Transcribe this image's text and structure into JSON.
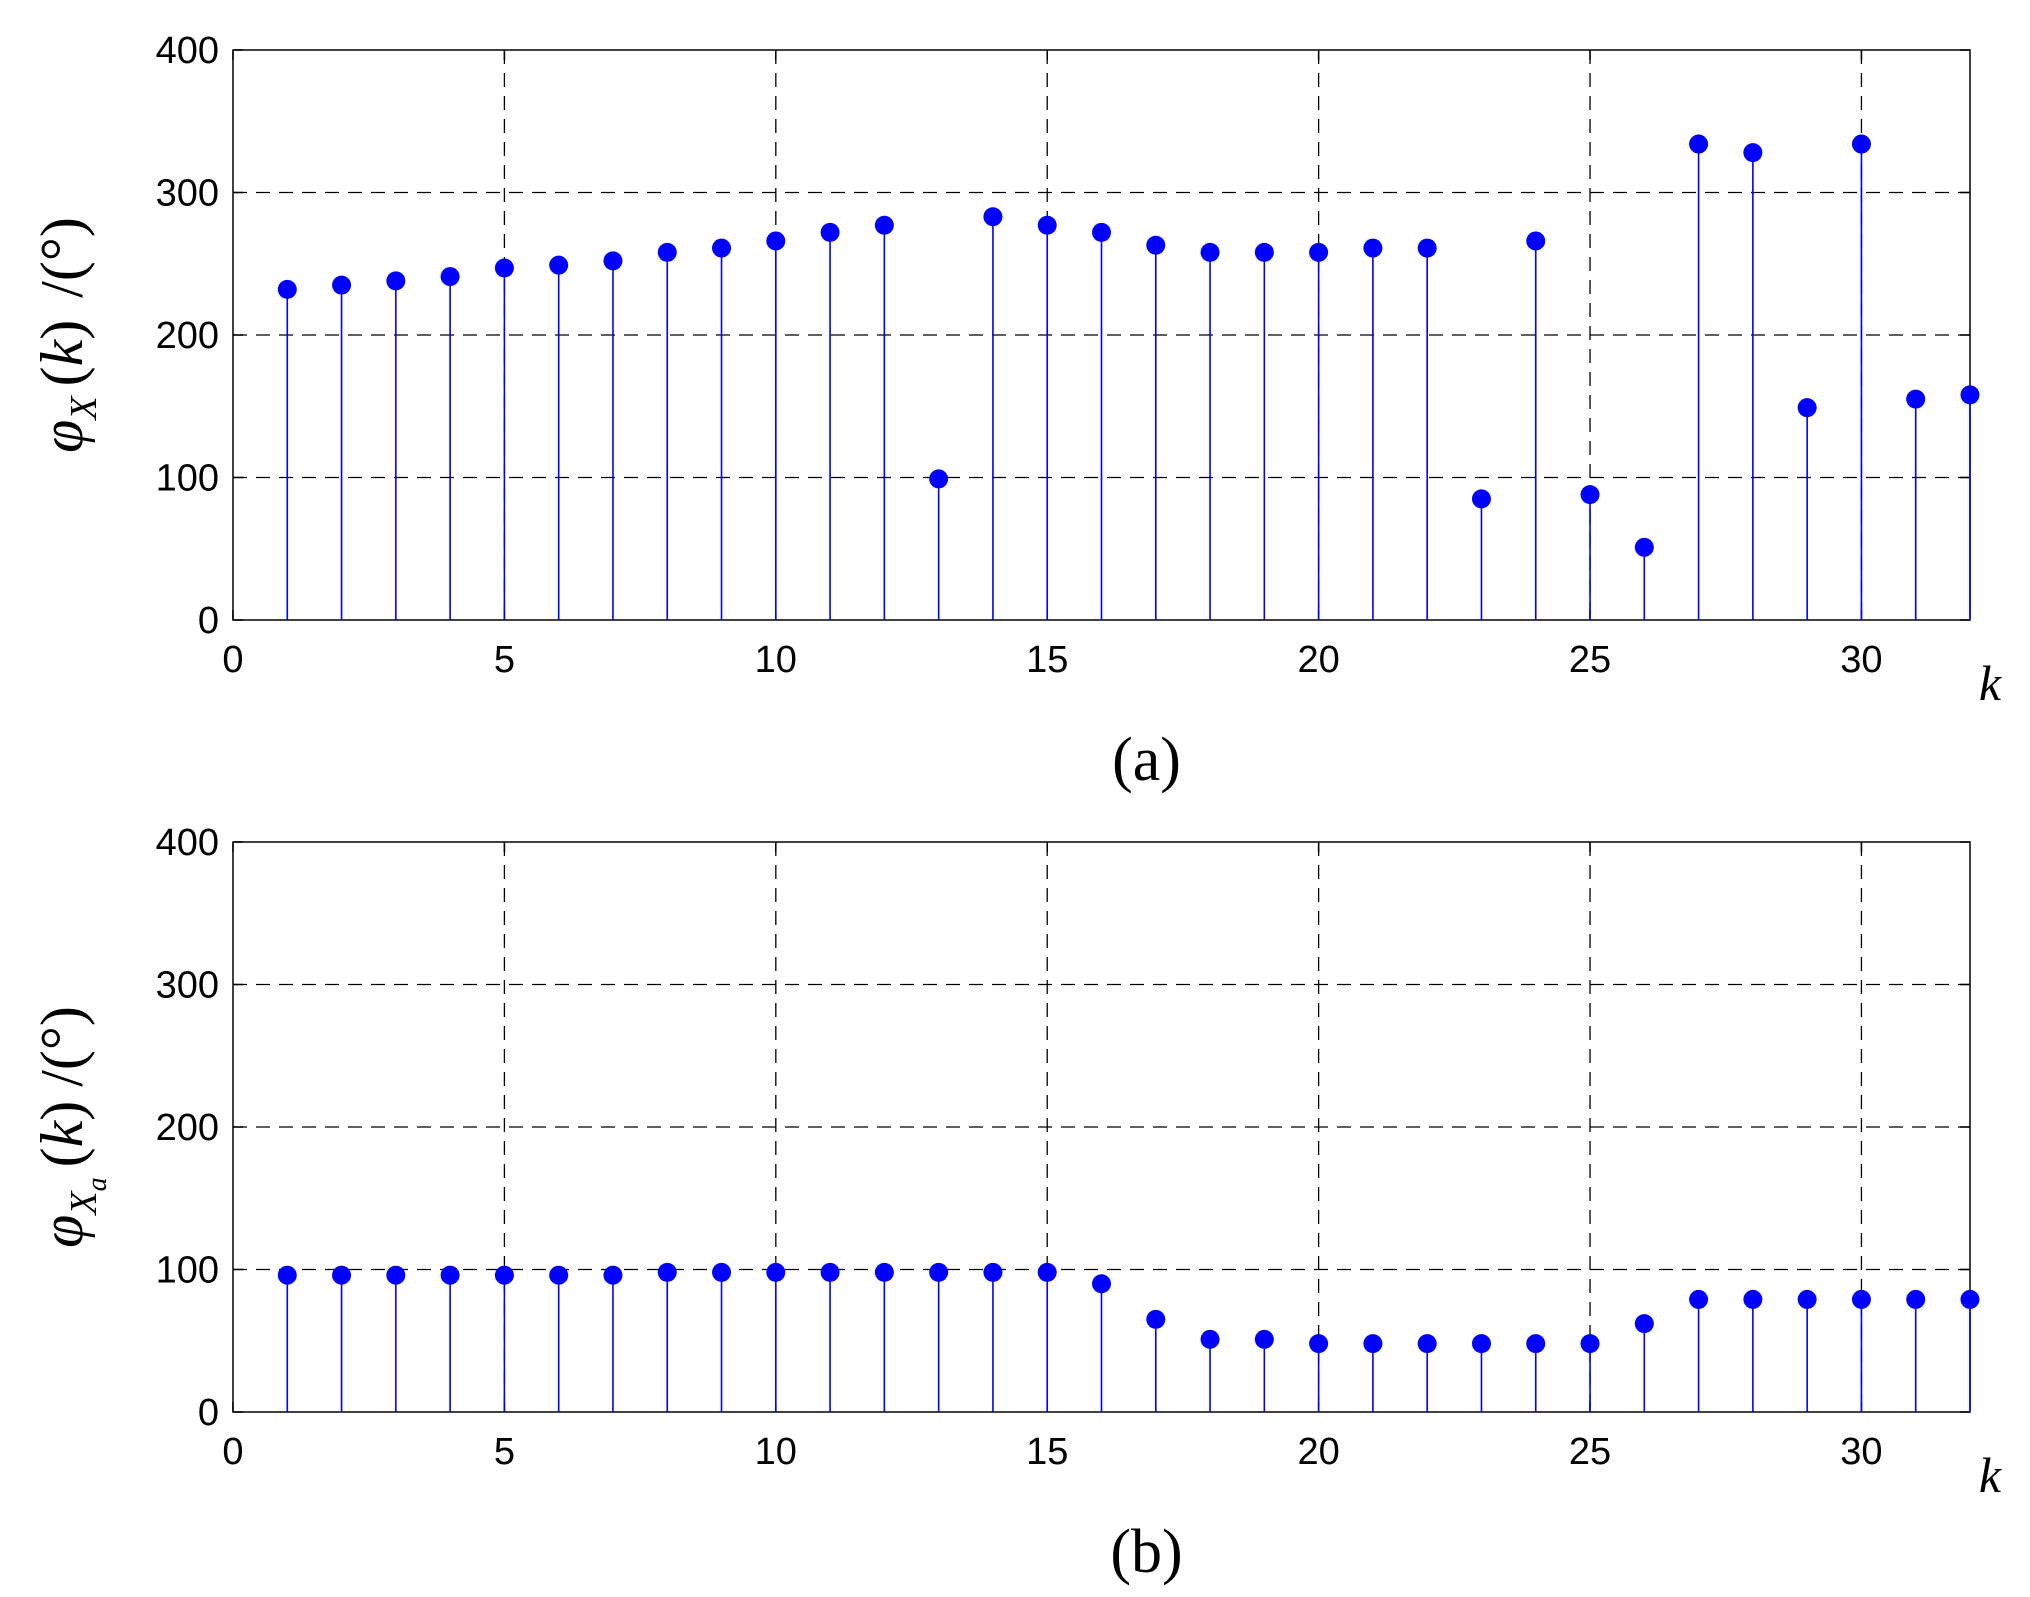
{
  "chart_data": [
    {
      "type": "scatter",
      "style": "stem",
      "caption": "(a)",
      "xlabel": "k",
      "ylabel": {
        "symbol": "φ",
        "subscript": "X",
        "subsub": "",
        "open": "(",
        "var": "k",
        "close": ")",
        "unit": "/(°)"
      },
      "xlim": [
        0,
        32
      ],
      "ylim": [
        0,
        400
      ],
      "xticks": [
        0,
        5,
        10,
        15,
        20,
        25,
        30
      ],
      "yticks": [
        0,
        100,
        200,
        300,
        400
      ],
      "grid": true,
      "color": "#0000ff",
      "x": [
        1,
        2,
        3,
        4,
        5,
        6,
        7,
        8,
        9,
        10,
        11,
        12,
        13,
        14,
        15,
        16,
        17,
        18,
        19,
        20,
        21,
        22,
        23,
        24,
        25,
        26,
        27,
        28,
        29,
        30,
        31,
        32
      ],
      "y": [
        232,
        235,
        238,
        241,
        247,
        249,
        252,
        258,
        261,
        266,
        272,
        277,
        99,
        283,
        277,
        272,
        263,
        258,
        258,
        258,
        261,
        261,
        85,
        266,
        88,
        51,
        334,
        328,
        149,
        334,
        155,
        158
      ]
    },
    {
      "type": "scatter",
      "style": "stem",
      "caption": "(b)",
      "xlabel": "k",
      "ylabel": {
        "symbol": "φ",
        "subscript": "X",
        "subsub": "a",
        "open": "(",
        "var": "k",
        "close": ")",
        "unit": "/(°)"
      },
      "xlim": [
        0,
        32
      ],
      "ylim": [
        0,
        400
      ],
      "xticks": [
        0,
        5,
        10,
        15,
        20,
        25,
        30
      ],
      "yticks": [
        0,
        100,
        200,
        300,
        400
      ],
      "grid": true,
      "color": "#0000ff",
      "x": [
        1,
        2,
        3,
        4,
        5,
        6,
        7,
        8,
        9,
        10,
        11,
        12,
        13,
        14,
        15,
        16,
        17,
        18,
        19,
        20,
        21,
        22,
        23,
        24,
        25,
        26,
        27,
        28,
        29,
        30,
        31,
        32
      ],
      "y": [
        96,
        96,
        96,
        96,
        96,
        96,
        96,
        98,
        98,
        98,
        98,
        98,
        98,
        98,
        98,
        90,
        65,
        51,
        51,
        48,
        48,
        48,
        48,
        48,
        48,
        62,
        79,
        79,
        79,
        79,
        79,
        79
      ]
    }
  ]
}
